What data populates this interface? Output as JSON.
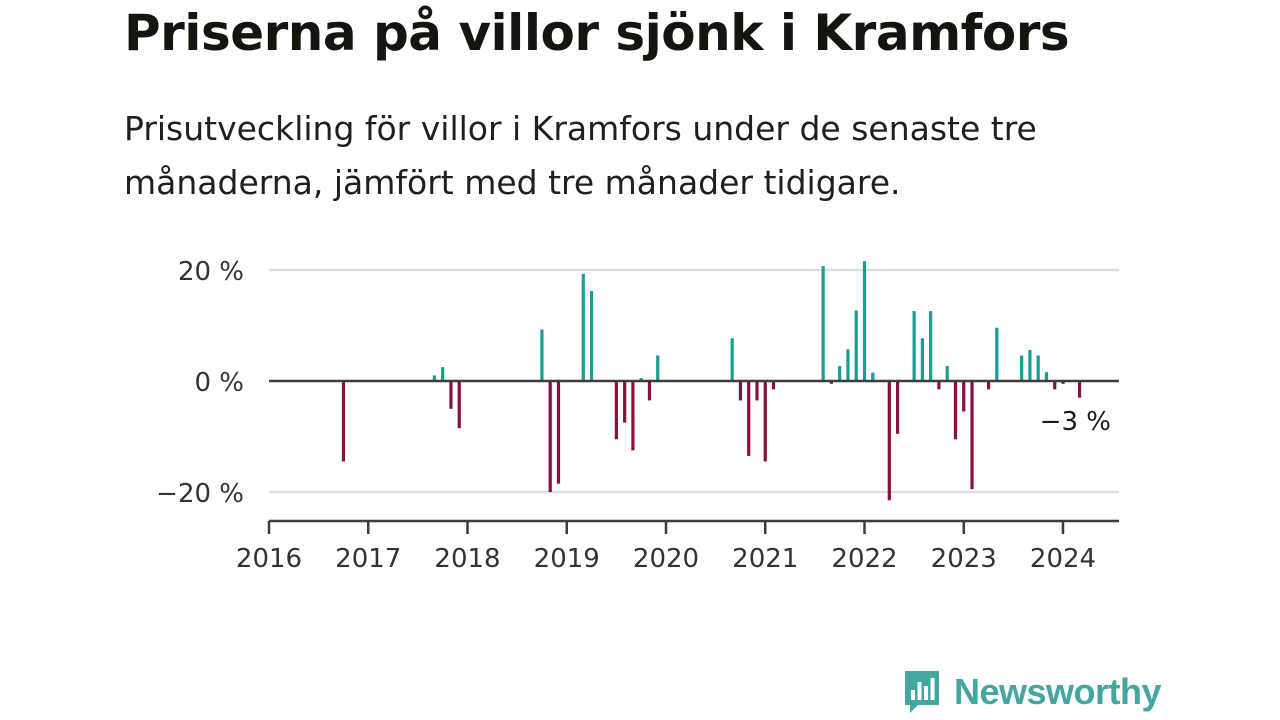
{
  "title": "Priserna på villor sjönk i Kramfors",
  "subtitle": "Prisutveckling för villor i Kramfors under de senaste tre månaderna, jämfört med tre månader tidigare.",
  "brand": {
    "name": "Newsworthy",
    "icon": "newsworthy-logo-icon"
  },
  "colors": {
    "positive": "#1a9e94",
    "negative": "#8b0f3e",
    "axis": "#3c3c3c",
    "grid": "#dddddd",
    "brand": "#43a6a0"
  },
  "chart_data": {
    "type": "bar",
    "title": "Priserna på villor sjönk i Kramfors",
    "xlabel": "",
    "ylabel": "",
    "xlim": [
      "2016-01",
      "2024-06"
    ],
    "ylim": [
      -25,
      22
    ],
    "y_ticks": [
      {
        "value": 20,
        "label": "20 %"
      },
      {
        "value": 0,
        "label": "0 %"
      },
      {
        "value": -20,
        "label": "−20 %"
      }
    ],
    "x_ticks": [
      "2016",
      "2017",
      "2018",
      "2019",
      "2020",
      "2021",
      "2022",
      "2023",
      "2024"
    ],
    "grid": true,
    "annotation": {
      "date": "2024-03",
      "value": -3,
      "label": "−3 %"
    },
    "points": [
      {
        "date": "2016-10",
        "value": -14.5
      },
      {
        "date": "2017-09",
        "value": 1
      },
      {
        "date": "2017-10",
        "value": 2.5
      },
      {
        "date": "2017-11",
        "value": -5
      },
      {
        "date": "2017-12",
        "value": -8.5
      },
      {
        "date": "2018-10",
        "value": 9.3
      },
      {
        "date": "2018-11",
        "value": -20
      },
      {
        "date": "2018-12",
        "value": -18.5
      },
      {
        "date": "2019-03",
        "value": 19.3
      },
      {
        "date": "2019-04",
        "value": 16.2
      },
      {
        "date": "2019-07",
        "value": -10.5
      },
      {
        "date": "2019-08",
        "value": -7.5
      },
      {
        "date": "2019-09",
        "value": -12.5
      },
      {
        "date": "2019-10",
        "value": 0.5
      },
      {
        "date": "2019-11",
        "value": -3.5
      },
      {
        "date": "2019-12",
        "value": 4.6
      },
      {
        "date": "2020-09",
        "value": 7.7
      },
      {
        "date": "2020-10",
        "value": -3.5
      },
      {
        "date": "2020-11",
        "value": -13.5
      },
      {
        "date": "2020-12",
        "value": -3.5
      },
      {
        "date": "2021-01",
        "value": -14.5
      },
      {
        "date": "2021-02",
        "value": -1.5
      },
      {
        "date": "2021-08",
        "value": 20.7
      },
      {
        "date": "2021-09",
        "value": -0.5
      },
      {
        "date": "2021-10",
        "value": 2.7
      },
      {
        "date": "2021-11",
        "value": 5.7
      },
      {
        "date": "2021-12",
        "value": 12.7
      },
      {
        "date": "2022-01",
        "value": 21.6
      },
      {
        "date": "2022-02",
        "value": 1.5
      },
      {
        "date": "2022-04",
        "value": -21.5
      },
      {
        "date": "2022-05",
        "value": -9.5
      },
      {
        "date": "2022-07",
        "value": 12.6
      },
      {
        "date": "2022-08",
        "value": 7.7
      },
      {
        "date": "2022-09",
        "value": 12.6
      },
      {
        "date": "2022-10",
        "value": -1.5
      },
      {
        "date": "2022-11",
        "value": 2.7
      },
      {
        "date": "2022-12",
        "value": -10.5
      },
      {
        "date": "2023-01",
        "value": -5.5
      },
      {
        "date": "2023-02",
        "value": -19.5
      },
      {
        "date": "2023-04",
        "value": -1.5
      },
      {
        "date": "2023-05",
        "value": 9.6
      },
      {
        "date": "2023-08",
        "value": 4.6
      },
      {
        "date": "2023-09",
        "value": 5.6
      },
      {
        "date": "2023-10",
        "value": 4.6
      },
      {
        "date": "2023-11",
        "value": 1.6
      },
      {
        "date": "2023-12",
        "value": -1.5
      },
      {
        "date": "2024-01",
        "value": -0.5
      },
      {
        "date": "2024-03",
        "value": -3
      }
    ]
  }
}
